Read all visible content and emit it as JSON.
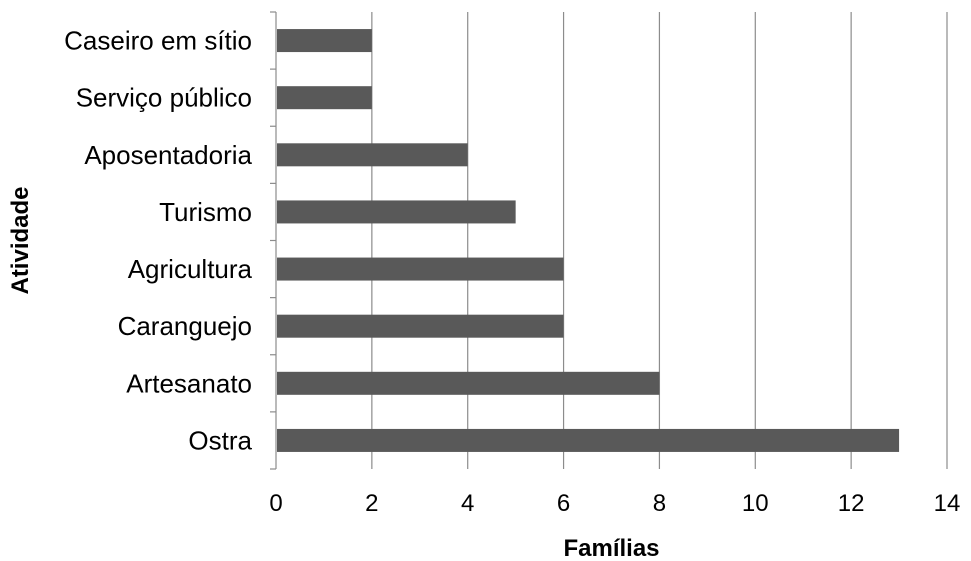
{
  "chart_data": {
    "type": "bar",
    "orientation": "horizontal",
    "categories": [
      "Caseiro em sítio",
      "Serviço público",
      "Aposentadoria",
      "Turismo",
      "Agricultura",
      "Caranguejo",
      "Artesanato",
      "Ostra"
    ],
    "values": [
      2,
      2,
      4,
      5,
      6,
      6,
      8,
      13
    ],
    "xlabel": "Famílias",
    "ylabel": "Atividade",
    "xlim": [
      0,
      14
    ],
    "xticks": [
      0,
      2,
      4,
      6,
      8,
      10,
      12,
      14
    ],
    "grid": "vertical",
    "legend": "none",
    "colors": {
      "bar": "#595959",
      "gridline": "#8c8c8c",
      "axis": "#8c8c8c",
      "text": "#000000"
    }
  }
}
